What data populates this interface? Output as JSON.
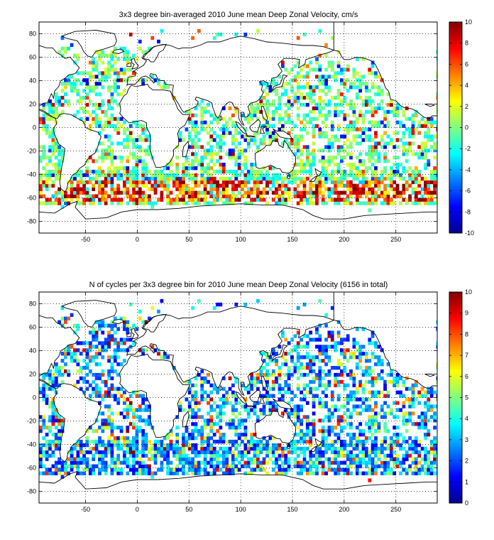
{
  "panels": [
    {
      "title": "3x3 degree bin-averaged 2010 June mean Deep Zonal Velocity, cm/s",
      "xlim": [
        -95,
        290
      ],
      "ylim": [
        -90,
        90
      ],
      "xticks": [
        -50,
        0,
        50,
        100,
        150,
        200,
        250
      ],
      "yticks": [
        80,
        60,
        40,
        20,
        0,
        -20,
        -40,
        -60,
        -80
      ],
      "colorbar": {
        "colormap": "jet",
        "range": [
          -10,
          10
        ],
        "ticks": [
          10,
          8,
          6,
          4,
          2,
          0,
          -2,
          -4,
          -6,
          -8,
          -10
        ]
      }
    },
    {
      "title": "N of cycles per 3x3 degree bin for 2010 June mean Deep Zonal Velocity (6156 in total)",
      "xlim": [
        -95,
        290
      ],
      "ylim": [
        -90,
        90
      ],
      "xticks": [
        -50,
        0,
        50,
        100,
        150,
        200,
        250
      ],
      "yticks": [
        80,
        60,
        40,
        20,
        0,
        -20,
        -40,
        -60,
        -80
      ],
      "colorbar": {
        "colormap": "jet",
        "range": [
          0,
          10
        ],
        "ticks": [
          10,
          9,
          8,
          7,
          6,
          5,
          4,
          3,
          2,
          1,
          0
        ]
      }
    }
  ]
}
